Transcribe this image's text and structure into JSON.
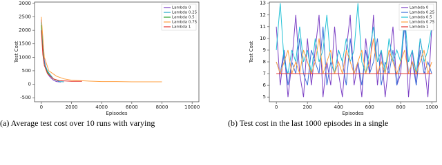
{
  "chart_data": [
    {
      "type": "line",
      "ylabel": "Test Cost",
      "xlabel": "Episodes",
      "caption": "(a) Average test cost over 10 runs with varying",
      "xlim": [
        -450,
        10450
      ],
      "ylim": [
        -650,
        3050
      ],
      "xticks": [
        0,
        2000,
        4000,
        6000,
        8000,
        10000
      ],
      "yticks": [
        -500,
        0,
        500,
        1000,
        1500,
        2000,
        2500,
        3000
      ],
      "legend": "upper right",
      "series": [
        {
          "name": "Lambda 0",
          "color": "#7b3fc4",
          "x": [
            0,
            100,
            200,
            300,
            400,
            600,
            800,
            1000,
            1300
          ],
          "values": [
            2400,
            1400,
            900,
            600,
            400,
            250,
            150,
            100,
            80
          ]
        },
        {
          "name": "Lambda 0.25",
          "color": "#22a7c9",
          "x": [
            0,
            100,
            200,
            400,
            600,
            800,
            1000,
            1200,
            1500
          ],
          "values": [
            2300,
            1300,
            800,
            500,
            350,
            200,
            150,
            100,
            90
          ]
        },
        {
          "name": "Lambda 0.5",
          "color": "#2ca02c",
          "x": [
            0,
            100,
            200,
            400,
            600,
            800,
            1000
          ],
          "values": [
            2200,
            1200,
            700,
            450,
            300,
            200,
            150
          ]
        },
        {
          "name": "Lambda 0.75",
          "color": "#ff9f3f",
          "x": [
            0,
            200,
            500,
            1000,
            1500,
            2000,
            3000,
            4000,
            5000,
            6000,
            7000,
            8000
          ],
          "values": [
            2500,
            1000,
            500,
            300,
            200,
            150,
            120,
            100,
            100,
            90,
            90,
            90
          ]
        },
        {
          "name": "Lambda 1",
          "color": "#e3342f",
          "x": [
            0,
            100,
            200,
            400,
            800,
            1200,
            1600,
            2000,
            2700
          ],
          "values": [
            2000,
            1100,
            700,
            400,
            200,
            130,
            120,
            110,
            110
          ]
        }
      ]
    },
    {
      "type": "line",
      "ylabel": "Test Cost",
      "xlabel": "Episodes",
      "caption": "(b) Test cost in the last 1000 episodes in a single",
      "xlim": [
        -45,
        1030
      ],
      "ylim": [
        4.6,
        13.1
      ],
      "xticks": [
        0,
        200,
        400,
        600,
        800,
        1000
      ],
      "yticks": [
        5,
        6,
        7,
        8,
        9,
        10,
        11,
        12,
        13
      ],
      "legend": "upper right",
      "series": [
        {
          "name": "Lambda 0",
          "color": "#7b3fc4",
          "x": [
            0,
            25,
            50,
            75,
            100,
            125,
            150,
            175,
            200,
            225,
            250,
            275,
            300,
            325,
            350,
            375,
            400,
            425,
            450,
            475,
            500,
            525,
            550,
            575,
            600,
            625,
            650,
            675,
            700,
            725,
            750,
            775,
            800,
            825,
            850,
            875,
            900,
            925,
            950,
            975,
            1000
          ],
          "values": [
            11,
            6,
            9,
            5,
            8,
            12,
            7,
            5,
            10,
            6,
            9,
            12,
            5,
            8,
            6,
            11,
            7,
            5,
            9,
            12,
            6,
            8,
            5,
            10,
            7,
            12,
            6,
            9,
            5,
            8,
            11,
            6,
            7,
            12,
            5,
            9,
            6,
            10,
            8,
            5,
            11
          ]
        },
        {
          "name": "Lambda 0.25",
          "color": "#3a6fd8",
          "x": [
            0,
            25,
            50,
            75,
            100,
            125,
            150,
            175,
            200,
            225,
            250,
            275,
            300,
            325,
            350,
            375,
            400,
            425,
            450,
            475,
            500,
            525,
            550,
            575,
            600,
            625,
            650,
            675,
            700,
            725,
            750,
            775,
            800,
            825,
            850,
            875,
            900,
            925,
            950,
            975,
            1000
          ],
          "values": [
            8,
            7,
            9,
            6,
            8,
            7,
            10,
            7,
            6,
            9,
            8,
            7,
            11,
            6,
            8,
            7,
            9,
            8,
            6,
            10,
            7,
            8,
            6,
            9,
            7,
            8,
            10,
            6,
            8,
            7,
            9,
            6,
            8,
            11,
            7,
            8,
            6,
            9,
            7,
            8,
            7
          ]
        },
        {
          "name": "Lambda 0.5",
          "color": "#22c1d6",
          "x": [
            0,
            25,
            50,
            75,
            100,
            125,
            150,
            175,
            200,
            225,
            250,
            275,
            300,
            325,
            350,
            375,
            400,
            425,
            450,
            475,
            500,
            525,
            550,
            575,
            600,
            625,
            650,
            675,
            700,
            725,
            750,
            775,
            800,
            825,
            850,
            875,
            900,
            925,
            950,
            975,
            1000
          ],
          "values": [
            9,
            13,
            8,
            7,
            9,
            8,
            11,
            8,
            9,
            7,
            10,
            8,
            9,
            12,
            8,
            7,
            9,
            8,
            10,
            8,
            9,
            13,
            8,
            7,
            9,
            11,
            8,
            9,
            7,
            10,
            8,
            9,
            8,
            12,
            8,
            9,
            7,
            10,
            8,
            9,
            11
          ]
        },
        {
          "name": "Lambda 0.75",
          "color": "#ff9f3f",
          "x": [
            0,
            25,
            50,
            75,
            100,
            125,
            150,
            175,
            200,
            225,
            250,
            275,
            300,
            325,
            350,
            375,
            400,
            425,
            450,
            475,
            500,
            525,
            550,
            575,
            600,
            625,
            650,
            675,
            700,
            725,
            750,
            775,
            800,
            825,
            850,
            875,
            900,
            925,
            950,
            975,
            1000
          ],
          "values": [
            8,
            7,
            8,
            9,
            7,
            8,
            7,
            9,
            8,
            7,
            8,
            10,
            7,
            8,
            9,
            7,
            8,
            7,
            9,
            8,
            7,
            8,
            9,
            7,
            8,
            10,
            7,
            8,
            7,
            9,
            8,
            7,
            8,
            9,
            7,
            8,
            7,
            8,
            9,
            7,
            8
          ]
        },
        {
          "name": "Lambda 1",
          "color": "#e3342f",
          "x": [
            0,
            1000
          ],
          "values": [
            7,
            7
          ]
        }
      ]
    }
  ]
}
